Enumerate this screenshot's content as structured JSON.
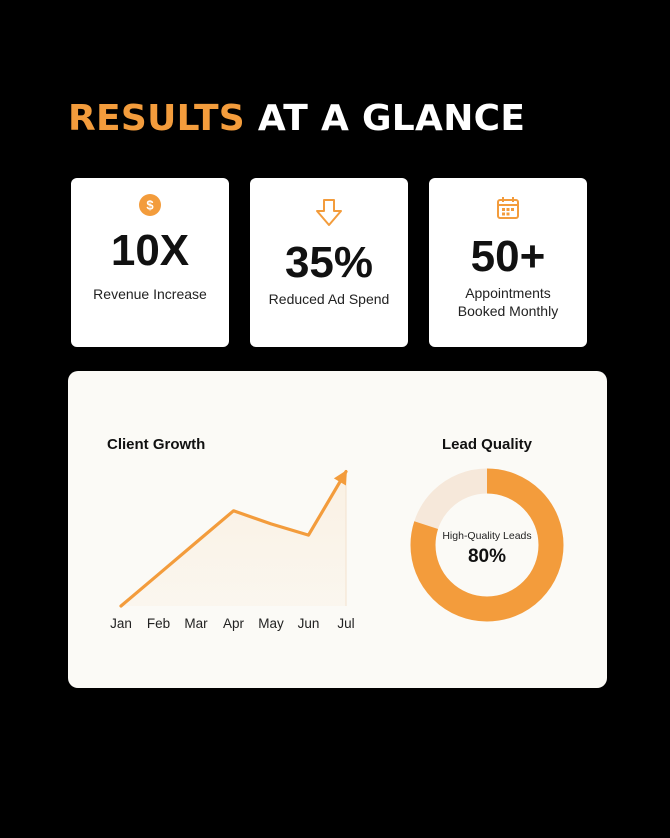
{
  "header": {
    "title_accent": "RESULTS",
    "title_rest": "AT A GLANCE"
  },
  "colors": {
    "accent": "#f39c3c",
    "background": "#000000",
    "panel": "#fbfaf6"
  },
  "stats": [
    {
      "icon": "dollar-circle-icon",
      "value": "10X",
      "label": "Revenue Increase"
    },
    {
      "icon": "arrow-down-icon",
      "value": "35%",
      "label": "Reduced Ad Spend"
    },
    {
      "icon": "calendar-icon",
      "value": "50+",
      "label": "Appointments\nBooked Monthly"
    }
  ],
  "chart_data": [
    {
      "type": "area",
      "title": "Client Growth",
      "categories": [
        "Jan",
        "Feb",
        "Mar",
        "Apr",
        "May",
        "Jun",
        "Jul"
      ],
      "series": [
        {
          "values": [
            0,
            17,
            34,
            51,
            44,
            38,
            72
          ]
        }
      ],
      "ylim": [
        0,
        75
      ],
      "grid": false
    },
    {
      "type": "pie",
      "title": "Lead Quality",
      "slices": [
        {
          "label": "High-Quality Leads",
          "value": 80
        },
        {
          "label": "",
          "value": 20
        }
      ],
      "center_label": "High-Quality Leads",
      "center_value": "80%"
    }
  ]
}
